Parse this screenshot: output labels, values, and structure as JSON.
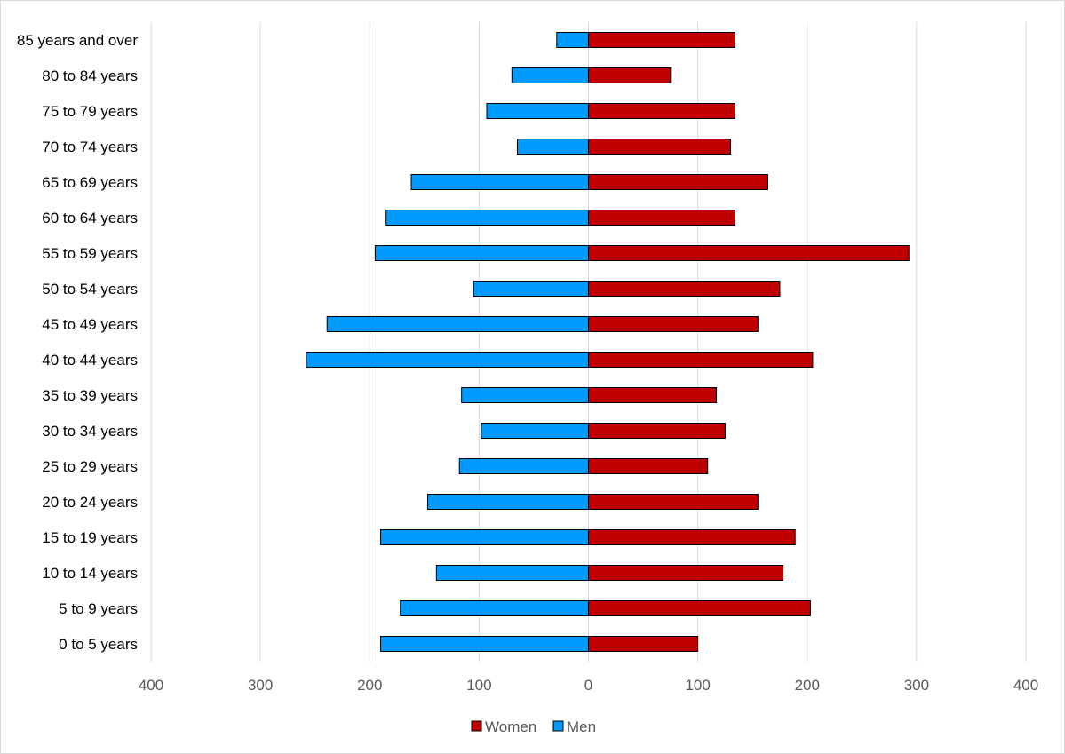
{
  "chart_data": {
    "type": "bar",
    "orientation": "horizontal",
    "layout": "population-pyramid",
    "categories": [
      "85 years and over",
      "80 to 84 years",
      "75 to 79 years",
      "70 to 74 years",
      "65 to 69 years",
      "60 to 64 years",
      "55 to 59 years",
      "50 to 54 years",
      "45 to 49 years",
      "40 to 44 years",
      "35 to 39 years",
      "30 to 34 years",
      "25 to 29 years",
      "20 to 24 years",
      "15 to 19 years",
      "10 to 14 years",
      "5 to 9 years",
      "0 to 5 years"
    ],
    "series": [
      {
        "name": "Women",
        "color": "#c00000",
        "values": [
          134,
          75,
          134,
          130,
          164,
          134,
          293,
          175,
          155,
          205,
          117,
          125,
          109,
          155,
          189,
          178,
          203,
          100
        ]
      },
      {
        "name": "Men",
        "color": "#0099ff",
        "values": [
          -29,
          -70,
          -93,
          -65,
          -162,
          -185,
          -195,
          -105,
          -239,
          -258,
          -116,
          -98,
          -118,
          -147,
          -190,
          -139,
          -172,
          -190
        ]
      }
    ],
    "xlim": [
      -400,
      400
    ],
    "xticks": [
      -400,
      -300,
      -200,
      -100,
      0,
      100,
      200,
      300,
      400
    ],
    "xtick_labels": [
      "400",
      "300",
      "200",
      "100",
      "0",
      "100",
      "200",
      "300",
      "400"
    ],
    "grid": "vertical",
    "legend": {
      "position": "bottom",
      "entries": [
        "Women",
        "Men"
      ]
    },
    "title": "",
    "xlabel": "",
    "ylabel": ""
  }
}
